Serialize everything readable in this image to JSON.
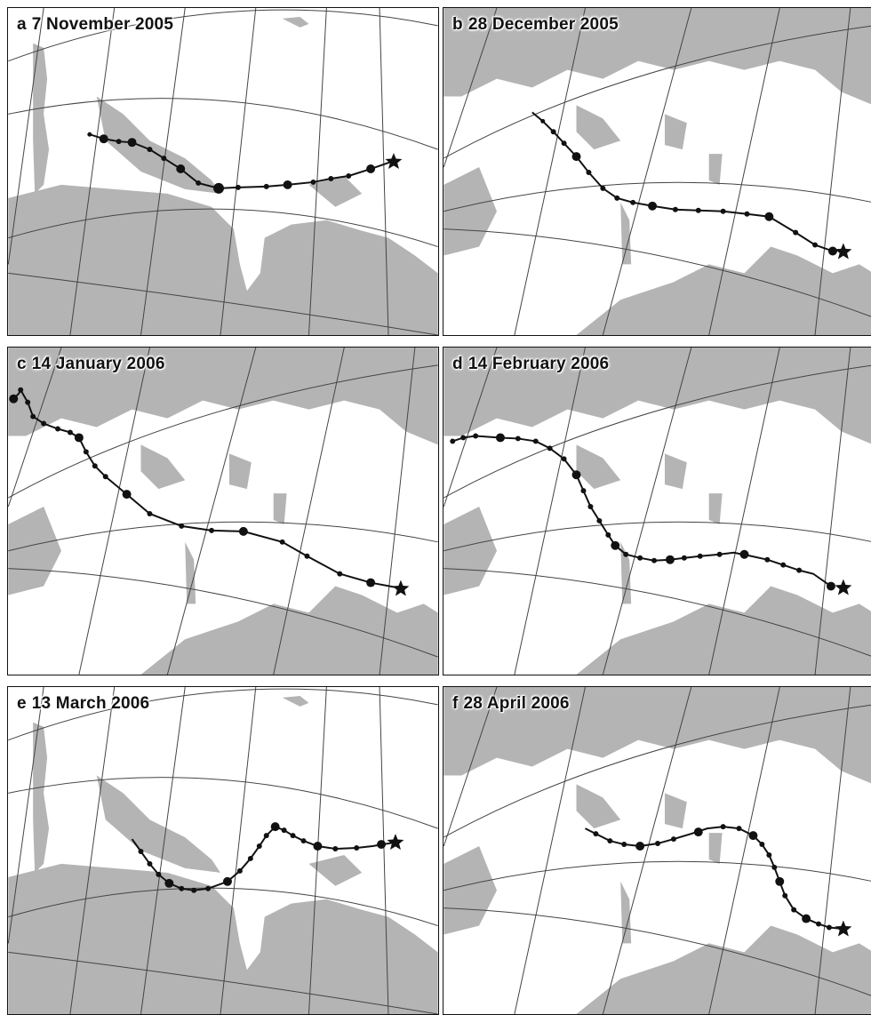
{
  "colors": {
    "land": "#b4b4b4",
    "sea": "#ffffff",
    "track": "#111111",
    "grid": "#444444"
  },
  "marker_icons": {
    "start": "star-icon"
  },
  "panels": [
    {
      "letter": "a",
      "date": "7 November 2005",
      "region": "west"
    },
    {
      "letter": "b",
      "date": "28 December 2005",
      "region": "east"
    },
    {
      "letter": "c",
      "date": "14 January 2006",
      "region": "east"
    },
    {
      "letter": "d",
      "date": "14 February 2006",
      "region": "east"
    },
    {
      "letter": "e",
      "date": "13 March 2006",
      "region": "west"
    },
    {
      "letter": "f",
      "date": "28 April 2006",
      "region": "east"
    }
  ]
}
